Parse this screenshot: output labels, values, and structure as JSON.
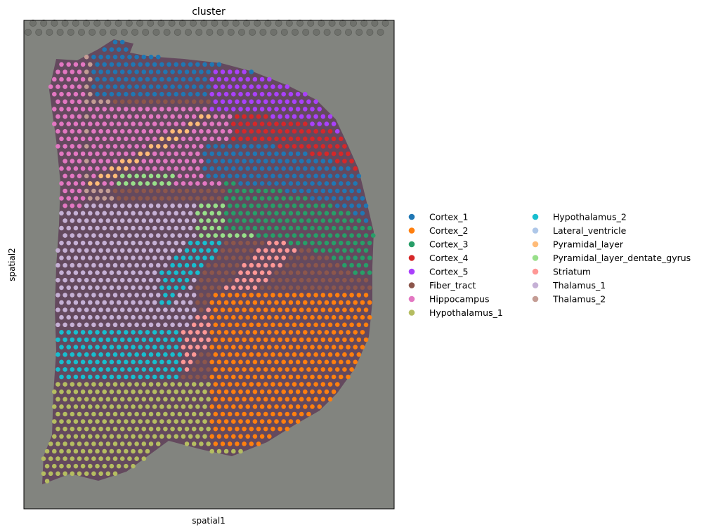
{
  "chart_data": {
    "type": "scatter",
    "title": "cluster",
    "xlabel": "spatial1",
    "ylabel": "spatial2",
    "grid": false,
    "legend_placement": "right",
    "background_image": "tissue-section-image",
    "series": [
      {
        "name": "Cortex_1",
        "color": "#1f77b4"
      },
      {
        "name": "Cortex_2",
        "color": "#ff7f0e"
      },
      {
        "name": "Cortex_3",
        "color": "#279e68"
      },
      {
        "name": "Cortex_4",
        "color": "#d62728"
      },
      {
        "name": "Cortex_5",
        "color": "#aa40fc"
      },
      {
        "name": "Fiber_tract",
        "color": "#8c564b"
      },
      {
        "name": "Hippocampus",
        "color": "#e377c2"
      },
      {
        "name": "Hypothalamus_1",
        "color": "#b5bd61"
      },
      {
        "name": "Hypothalamus_2",
        "color": "#17becf"
      },
      {
        "name": "Lateral_ventricle",
        "color": "#aec7e8"
      },
      {
        "name": "Pyramidal_layer",
        "color": "#ffbb78"
      },
      {
        "name": "Pyramidal_layer_dentate_gyrus",
        "color": "#98df8a"
      },
      {
        "name": "Striatum",
        "color": "#ff9896"
      },
      {
        "name": "Thalamus_1",
        "color": "#c5b0d5"
      },
      {
        "name": "Thalamus_2",
        "color": "#c49c94"
      }
    ]
  }
}
